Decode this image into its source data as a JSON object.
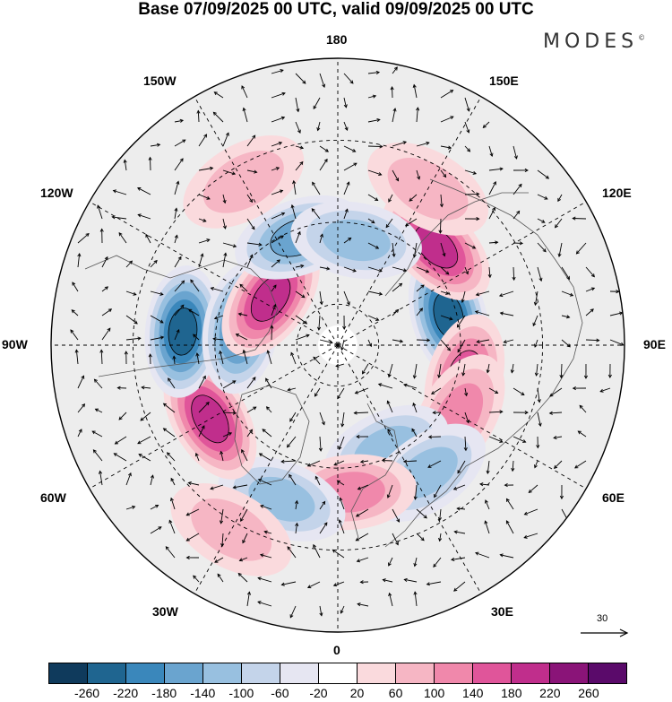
{
  "title": "Base 07/09/2025 00 UTC, valid 09/09/2025 00 UTC",
  "logo": "MODES",
  "logo_mark": "©",
  "longitude_labels": {
    "top": "180",
    "bottom": "0",
    "left": "90W",
    "right": "90E",
    "upper_left_outer": "150W",
    "upper_left_inner": "120W",
    "upper_right_outer": "150E",
    "upper_right_inner": "120E",
    "lower_left_outer": "60W",
    "lower_left_inner": "30W",
    "lower_right_outer": "60E",
    "lower_right_inner": "30E"
  },
  "reference_vector": "30",
  "colorbar": {
    "colors": [
      "#0f3a5c",
      "#1f6590",
      "#3a87bb",
      "#6aa4cf",
      "#98c0e0",
      "#c4d4ea",
      "#e6e6f2",
      "#ffffff",
      "#fadadd",
      "#f6b6c4",
      "#f088ab",
      "#e0559a",
      "#c02e8c",
      "#8a1478",
      "#5a0a6a"
    ],
    "ticks": [
      "-260",
      "-220",
      "-180",
      "-140",
      "-100",
      "-60",
      "-20",
      "20",
      "60",
      "100",
      "140",
      "180",
      "220",
      "260"
    ]
  },
  "anomaly_centers": [
    {
      "lon": 105,
      "lat": 62,
      "value": -240
    },
    {
      "lon": 135,
      "lat": 56,
      "value": 190
    },
    {
      "lon": 75,
      "lat": 58,
      "value": 150
    },
    {
      "lon": 60,
      "lat": 56,
      "value": 110
    },
    {
      "lon": 25,
      "lat": 62,
      "value": -120
    },
    {
      "lon": 35,
      "lat": 52,
      "value": -100
    },
    {
      "lon": 5,
      "lat": 54,
      "value": 130
    },
    {
      "lon": -20,
      "lat": 50,
      "value": -110
    },
    {
      "lon": -60,
      "lat": 54,
      "value": 190
    },
    {
      "lon": -95,
      "lat": 52,
      "value": -220
    },
    {
      "lon": -100,
      "lat": 66,
      "value": -200
    },
    {
      "lon": -125,
      "lat": 70,
      "value": 190
    },
    {
      "lon": -160,
      "lat": 62,
      "value": -150
    },
    {
      "lon": 170,
      "lat": 64,
      "value": -120
    },
    {
      "lon": 150,
      "lat": 46,
      "value": 90
    },
    {
      "lon": -150,
      "lat": 44,
      "value": 70
    },
    {
      "lon": -30,
      "lat": 38,
      "value": 70
    }
  ]
}
